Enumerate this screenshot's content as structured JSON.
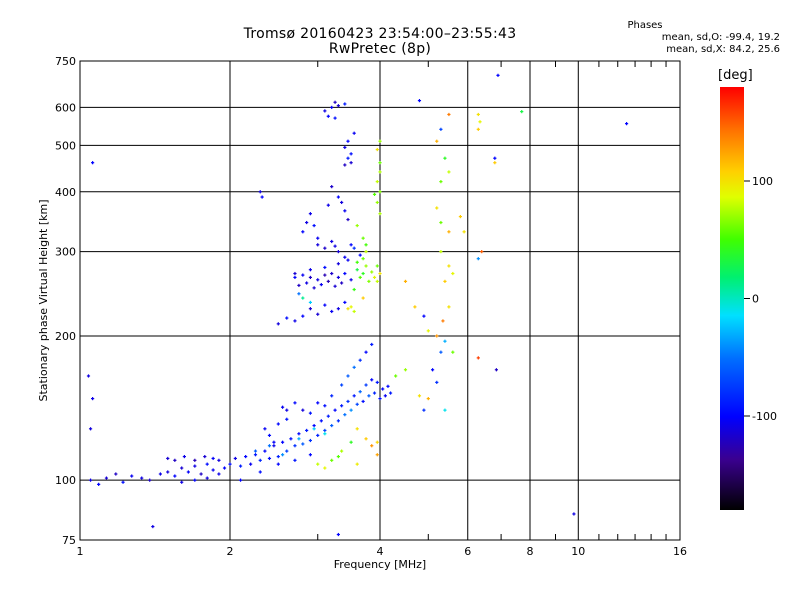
{
  "header": {
    "title": "Tromsø 20160423 23:54:00–23:55:43",
    "subtitle": "RwPretec (8p)",
    "phases_title": "Phases",
    "phases_o": "mean, sd,O: -99.4, 19.2",
    "phases_x": "mean, sd,X: 84.2, 25.6"
  },
  "colorbar": {
    "unit_label": "[deg]",
    "range": [
      -180,
      180
    ],
    "ticks": [
      {
        "value": 100,
        "label": "100"
      },
      {
        "value": 0,
        "label": "0"
      },
      {
        "value": -100,
        "label": "-100"
      }
    ]
  },
  "chart_data": {
    "type": "scatter",
    "title": "Tromsø 20160423 23:54:00–23:55:43",
    "subtitle": "RwPretec (8p)",
    "xlabel": "Frequency [MHz]",
    "ylabel": "Stationary phase Virtual Height [km]",
    "xscale": "log",
    "yscale": "log",
    "xlim": [
      1,
      16
    ],
    "ylim": [
      75,
      750
    ],
    "grid": true,
    "xticks": [
      {
        "value": 1,
        "label": "1",
        "major": true
      },
      {
        "value": 2,
        "label": "2",
        "major": true
      },
      {
        "value": 4,
        "label": "4",
        "major": true
      },
      {
        "value": 6,
        "label": "6",
        "major": false
      },
      {
        "value": 8,
        "label": "8",
        "major": false
      },
      {
        "value": 10,
        "label": "10",
        "major": false
      },
      {
        "value": 16,
        "label": "16",
        "major": false
      }
    ],
    "xminor": [
      3,
      5,
      7,
      9,
      11,
      12,
      13,
      14,
      15
    ],
    "yticks": [
      75,
      100,
      200,
      300,
      400,
      500,
      600,
      750
    ],
    "points": [
      [
        1.05,
        100,
        -110
      ],
      [
        1.09,
        98,
        -100
      ],
      [
        1.13,
        101,
        -115
      ],
      [
        1.18,
        103,
        -120
      ],
      [
        1.22,
        99,
        -95
      ],
      [
        1.27,
        102,
        -105
      ],
      [
        1.33,
        101,
        -110
      ],
      [
        1.38,
        100,
        -118
      ],
      [
        1.45,
        103,
        -108
      ],
      [
        1.5,
        104,
        -112
      ],
      [
        1.55,
        102,
        -100
      ],
      [
        1.6,
        106,
        -115
      ],
      [
        1.65,
        104,
        -102
      ],
      [
        1.7,
        107,
        -110
      ],
      [
        1.75,
        103,
        -120
      ],
      [
        1.8,
        108,
        -96
      ],
      [
        1.85,
        105,
        -105
      ],
      [
        1.9,
        110,
        -112
      ],
      [
        1.95,
        106,
        -100
      ],
      [
        2.0,
        108,
        -95
      ],
      [
        2.05,
        111,
        -110
      ],
      [
        2.1,
        107,
        -88
      ],
      [
        2.15,
        112,
        -100
      ],
      [
        2.2,
        108,
        -105
      ],
      [
        2.25,
        113,
        -92
      ],
      [
        2.3,
        110,
        -84
      ],
      [
        2.35,
        115,
        -100
      ],
      [
        2.4,
        111,
        -95
      ],
      [
        2.45,
        118,
        -108
      ],
      [
        2.5,
        112,
        -86
      ],
      [
        2.55,
        120,
        -100
      ],
      [
        2.6,
        115,
        -72
      ],
      [
        2.65,
        122,
        -95
      ],
      [
        2.7,
        118,
        -80
      ],
      [
        2.75,
        125,
        -100
      ],
      [
        2.8,
        119,
        -60
      ],
      [
        2.85,
        127,
        -90
      ],
      [
        2.9,
        121,
        -78
      ],
      [
        2.95,
        130,
        -100
      ],
      [
        3.0,
        124,
        -85
      ],
      [
        3.05,
        133,
        -95
      ],
      [
        3.1,
        127,
        -70
      ],
      [
        3.15,
        136,
        -88
      ],
      [
        3.2,
        130,
        -60
      ],
      [
        3.25,
        140,
        -100
      ],
      [
        3.3,
        133,
        -82
      ],
      [
        3.35,
        143,
        -90
      ],
      [
        3.4,
        137,
        -50
      ],
      [
        3.45,
        146,
        -80
      ],
      [
        3.5,
        140,
        -40
      ],
      [
        3.55,
        150,
        -90
      ],
      [
        3.6,
        144,
        -70
      ],
      [
        3.65,
        153,
        -55
      ],
      [
        3.7,
        146,
        -95
      ],
      [
        3.75,
        158,
        -75
      ],
      [
        3.8,
        150,
        -60
      ],
      [
        3.85,
        162,
        -100
      ],
      [
        3.9,
        152,
        -85
      ],
      [
        3.95,
        160,
        -90
      ],
      [
        4.0,
        148,
        -95
      ],
      [
        4.05,
        155,
        -100
      ],
      [
        4.1,
        150,
        -105
      ],
      [
        4.15,
        157,
        -98
      ],
      [
        4.2,
        152,
        -90
      ],
      [
        1.5,
        111,
        -115
      ],
      [
        1.55,
        110,
        -120
      ],
      [
        1.62,
        112,
        -108
      ],
      [
        1.7,
        110,
        -125
      ],
      [
        1.78,
        112,
        -115
      ],
      [
        1.85,
        111,
        -102
      ],
      [
        1.6,
        99,
        -110
      ],
      [
        1.7,
        100,
        -100
      ],
      [
        1.8,
        101,
        -112
      ],
      [
        1.9,
        103,
        -108
      ],
      [
        2.1,
        100,
        -100
      ],
      [
        2.3,
        104,
        -95
      ],
      [
        2.5,
        108,
        -100
      ],
      [
        2.7,
        110,
        -92
      ],
      [
        2.9,
        113,
        -98
      ],
      [
        2.25,
        115,
        -60
      ],
      [
        2.4,
        118,
        -50
      ],
      [
        2.55,
        113,
        -40
      ],
      [
        2.75,
        122,
        -30
      ],
      [
        2.95,
        128,
        -20
      ],
      [
        3.1,
        125,
        -10
      ],
      [
        3.0,
        108,
        80
      ],
      [
        3.1,
        106,
        90
      ],
      [
        3.2,
        110,
        60
      ],
      [
        3.35,
        115,
        75
      ],
      [
        3.5,
        120,
        40
      ],
      [
        3.6,
        128,
        100
      ],
      [
        3.75,
        122,
        110
      ],
      [
        3.85,
        118,
        130
      ],
      [
        3.95,
        113,
        125
      ],
      [
        3.95,
        120,
        105
      ],
      [
        3.6,
        108,
        95
      ],
      [
        3.3,
        112,
        55
      ],
      [
        2.55,
        142,
        -105
      ],
      [
        2.6,
        140,
        -110
      ],
      [
        2.7,
        145,
        -98
      ],
      [
        2.8,
        140,
        -112
      ],
      [
        2.9,
        138,
        -92
      ],
      [
        3.0,
        145,
        -100
      ],
      [
        3.1,
        143,
        -95
      ],
      [
        3.2,
        150,
        -85
      ],
      [
        3.35,
        158,
        -70
      ],
      [
        3.45,
        165,
        -60
      ],
      [
        3.55,
        172,
        -50
      ],
      [
        3.65,
        178,
        -80
      ],
      [
        3.75,
        185,
        -100
      ],
      [
        3.85,
        192,
        -90
      ],
      [
        2.45,
        120,
        -102
      ],
      [
        2.4,
        124,
        -96
      ],
      [
        2.35,
        128,
        -104
      ],
      [
        2.5,
        131,
        -98
      ],
      [
        2.6,
        134,
        -92
      ],
      [
        1.04,
        165,
        -110
      ],
      [
        1.05,
        128,
        -112
      ],
      [
        1.06,
        148,
        -108
      ],
      [
        1.06,
        460,
        -100
      ],
      [
        1.4,
        80,
        -110
      ],
      [
        3.3,
        77,
        -100
      ],
      [
        9.8,
        85,
        -110
      ],
      [
        12.5,
        555,
        -100
      ],
      [
        7.7,
        588,
        30
      ],
      [
        3.1,
        590,
        -110
      ],
      [
        3.2,
        600,
        -105
      ],
      [
        3.25,
        615,
        -120
      ],
      [
        3.3,
        605,
        -115
      ],
      [
        3.15,
        575,
        -100
      ],
      [
        3.25,
        570,
        -95
      ],
      [
        3.4,
        610,
        -90
      ],
      [
        3.4,
        495,
        -110
      ],
      [
        3.45,
        510,
        -100
      ],
      [
        3.5,
        480,
        -95
      ],
      [
        3.55,
        530,
        -105
      ],
      [
        3.5,
        460,
        -115
      ],
      [
        3.45,
        470,
        -90
      ],
      [
        3.4,
        455,
        -120
      ],
      [
        3.35,
        380,
        -112
      ],
      [
        3.4,
        365,
        -105
      ],
      [
        3.45,
        350,
        -120
      ],
      [
        3.3,
        390,
        -100
      ],
      [
        3.2,
        410,
        -118
      ],
      [
        3.15,
        375,
        -108
      ],
      [
        2.3,
        400,
        -110
      ],
      [
        2.32,
        390,
        -100
      ],
      [
        3.25,
        308,
        -110
      ],
      [
        3.3,
        300,
        -115
      ],
      [
        3.4,
        292,
        -105
      ],
      [
        3.5,
        310,
        -100
      ],
      [
        3.1,
        305,
        -118
      ],
      [
        3.0,
        310,
        -112
      ],
      [
        3.2,
        315,
        -110
      ],
      [
        2.7,
        270,
        -115
      ],
      [
        2.8,
        268,
        -105
      ],
      [
        2.9,
        265,
        -120
      ],
      [
        3.0,
        262,
        -110
      ],
      [
        3.1,
        268,
        -125
      ],
      [
        3.2,
        270,
        -118
      ],
      [
        3.3,
        265,
        -112
      ],
      [
        3.4,
        270,
        -100
      ],
      [
        3.5,
        262,
        -108
      ],
      [
        2.75,
        255,
        -120
      ],
      [
        2.85,
        258,
        -110
      ],
      [
        2.95,
        252,
        -115
      ],
      [
        3.05,
        256,
        -105
      ],
      [
        3.15,
        260,
        -125
      ],
      [
        3.25,
        254,
        -115
      ],
      [
        3.35,
        258,
        -120
      ],
      [
        2.7,
        265,
        -100
      ],
      [
        2.9,
        275,
        -108
      ],
      [
        3.1,
        278,
        -96
      ],
      [
        3.3,
        283,
        -112
      ],
      [
        3.45,
        288,
        -105
      ],
      [
        3.3,
        228,
        -110
      ],
      [
        3.2,
        225,
        -105
      ],
      [
        3.0,
        222,
        -115
      ],
      [
        2.8,
        220,
        -100
      ],
      [
        2.7,
        215,
        -108
      ],
      [
        2.6,
        218,
        -96
      ],
      [
        2.5,
        212,
        -112
      ],
      [
        2.9,
        228,
        -118
      ],
      [
        3.1,
        232,
        -102
      ],
      [
        3.4,
        235,
        -100
      ],
      [
        2.8,
        240,
        10
      ],
      [
        2.9,
        235,
        -20
      ],
      [
        2.75,
        245,
        -50
      ],
      [
        2.8,
        330,
        -100
      ],
      [
        2.85,
        345,
        -110
      ],
      [
        2.9,
        360,
        -108
      ],
      [
        2.95,
        340,
        -95
      ],
      [
        3.0,
        320,
        -105
      ],
      [
        3.6,
        340,
        70
      ],
      [
        3.7,
        320,
        60
      ],
      [
        3.75,
        300,
        80
      ],
      [
        3.6,
        285,
        50
      ],
      [
        3.7,
        270,
        40
      ],
      [
        3.8,
        260,
        65
      ],
      [
        3.75,
        280,
        70
      ],
      [
        3.65,
        265,
        55
      ],
      [
        3.55,
        250,
        45
      ],
      [
        3.7,
        290,
        60
      ],
      [
        3.75,
        310,
        50
      ],
      [
        3.6,
        275,
        30
      ],
      [
        3.55,
        305,
        -80
      ],
      [
        3.65,
        295,
        -100
      ],
      [
        3.5,
        230,
        90
      ],
      [
        3.45,
        228,
        100
      ],
      [
        3.55,
        225,
        80
      ],
      [
        3.7,
        240,
        110
      ],
      [
        3.95,
        380,
        70
      ],
      [
        4.0,
        400,
        65
      ],
      [
        3.95,
        420,
        80
      ],
      [
        4.0,
        440,
        75
      ],
      [
        4.0,
        460,
        60
      ],
      [
        3.95,
        490,
        100
      ],
      [
        4.0,
        510,
        70
      ],
      [
        3.9,
        395,
        55
      ],
      [
        4.0,
        360,
        75
      ],
      [
        3.9,
        265,
        90
      ],
      [
        4.0,
        270,
        100
      ],
      [
        3.95,
        260,
        80
      ],
      [
        3.85,
        272,
        70
      ],
      [
        3.95,
        280,
        60
      ],
      [
        4.8,
        620,
        -100
      ],
      [
        5.3,
        540,
        -70
      ],
      [
        5.5,
        580,
        140
      ],
      [
        5.2,
        510,
        120
      ],
      [
        5.4,
        470,
        40
      ],
      [
        5.5,
        440,
        80
      ],
      [
        5.3,
        420,
        60
      ],
      [
        5.2,
        370,
        100
      ],
      [
        5.3,
        345,
        60
      ],
      [
        5.5,
        330,
        120
      ],
      [
        5.3,
        300,
        80
      ],
      [
        5.5,
        280,
        100
      ],
      [
        5.6,
        270,
        90
      ],
      [
        5.4,
        260,
        110
      ],
      [
        4.5,
        260,
        120
      ],
      [
        4.7,
        230,
        110
      ],
      [
        4.9,
        220,
        -100
      ],
      [
        5.0,
        205,
        90
      ],
      [
        5.2,
        200,
        130
      ],
      [
        5.35,
        215,
        140
      ],
      [
        5.5,
        230,
        100
      ],
      [
        5.4,
        195,
        -30
      ],
      [
        5.3,
        185,
        -60
      ],
      [
        5.1,
        170,
        -100
      ],
      [
        5.2,
        160,
        -80
      ],
      [
        5.6,
        185,
        60
      ],
      [
        4.8,
        150,
        100
      ],
      [
        5.0,
        148,
        120
      ],
      [
        4.9,
        140,
        -80
      ],
      [
        5.4,
        140,
        -10
      ],
      [
        6.3,
        580,
        100
      ],
      [
        6.35,
        560,
        90
      ],
      [
        6.3,
        540,
        110
      ],
      [
        6.8,
        470,
        -100
      ],
      [
        6.8,
        460,
        110
      ],
      [
        6.4,
        300,
        150
      ],
      [
        6.3,
        290,
        -40
      ],
      [
        6.85,
        170,
        -120
      ],
      [
        6.3,
        180,
        160
      ],
      [
        6.9,
        700,
        -100
      ],
      [
        5.8,
        355,
        110
      ],
      [
        5.9,
        330,
        100
      ],
      [
        4.3,
        165,
        60
      ],
      [
        4.5,
        170,
        70
      ]
    ]
  }
}
